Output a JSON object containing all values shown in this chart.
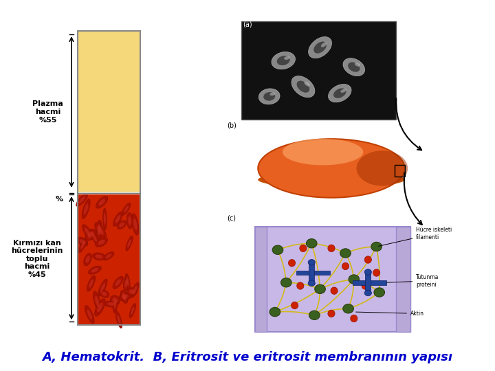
{
  "title": "A, Hematokrit.  B, Eritrosit ve eritrosit membranının yapısı",
  "title_color": "#0000CC",
  "title_fontsize": 13,
  "bg_color": "#FFFFFF",
  "plasma_color": "#F5D87A",
  "plasma_label": "Plazma\nhacmi\n%55",
  "rbc_label": "Kırmızı kan\nhücrelerinin\ntoplu\nhacmi\n%45",
  "percent_label": "%",
  "rbc_color": "#CC2200",
  "tube_border": "#888888",
  "arrow_color": "#000000",
  "label_fontsize": 8,
  "label_color": "#000000",
  "panel_a_label_color": "#000000"
}
